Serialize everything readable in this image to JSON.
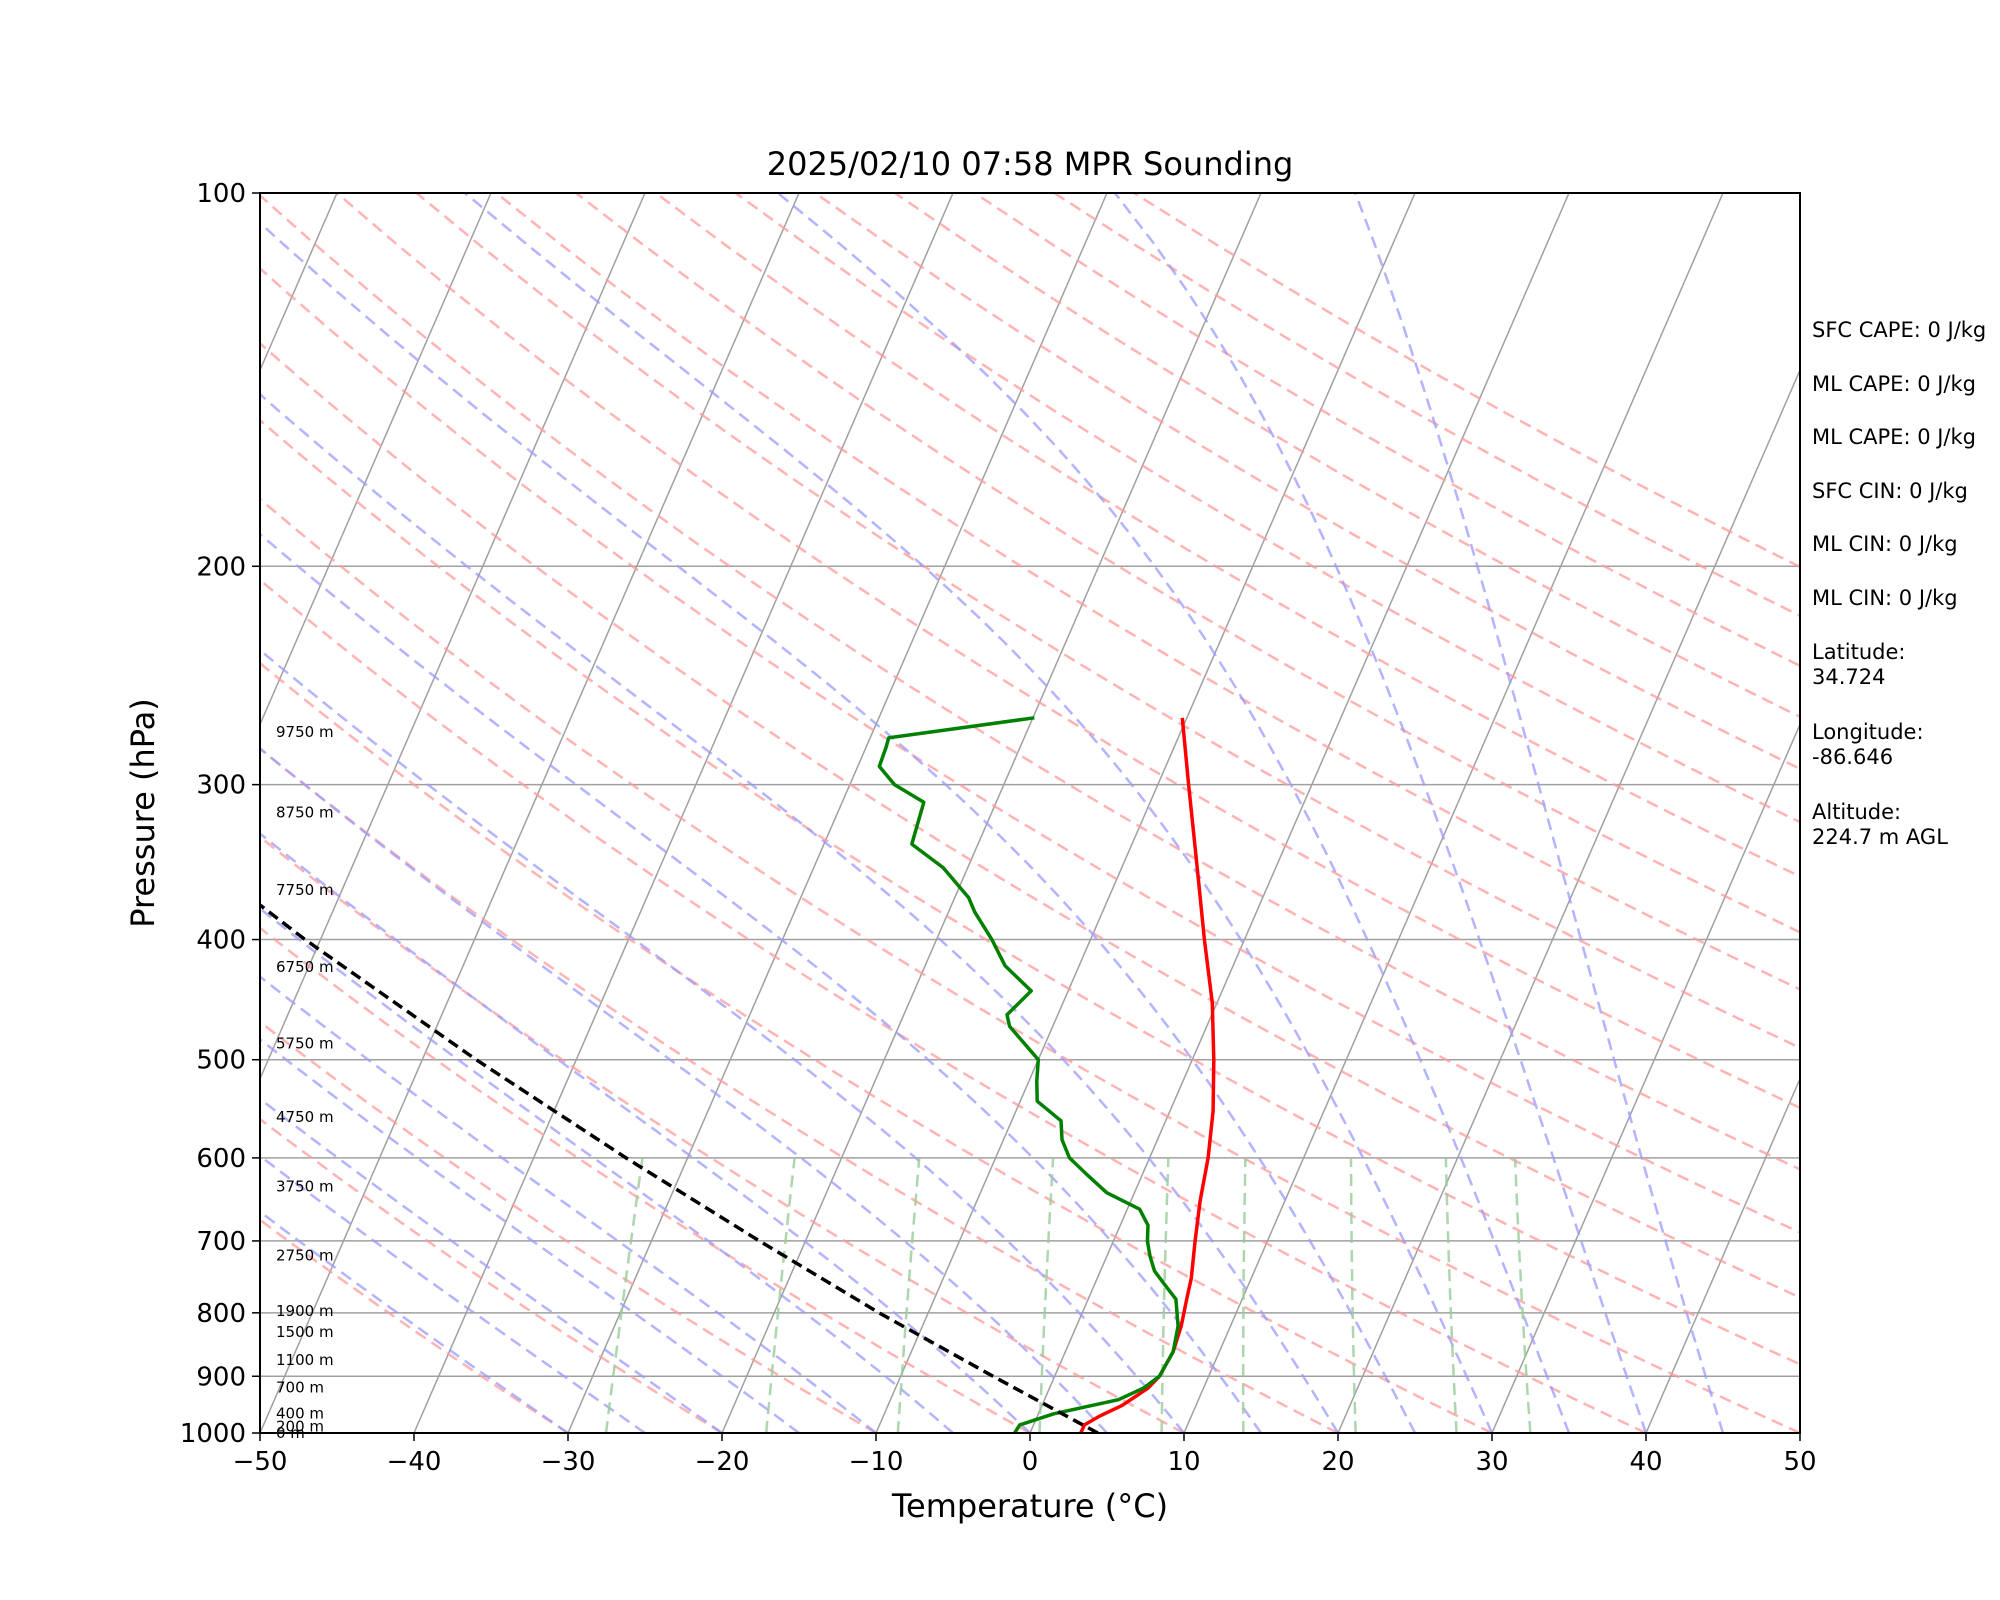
{
  "chart_data": {
    "type": "line",
    "title": "2025/02/10 07:58 MPR Sounding",
    "xlabel": "Temperature (°C)",
    "ylabel": "Pressure (hPa)",
    "xlim": [
      -50,
      50
    ],
    "ylim": [
      1000,
      100
    ],
    "y_scale": "log",
    "x_ticks": [
      "−50",
      "−40",
      "−30",
      "−20",
      "−10",
      "0",
      "10",
      "20",
      "30",
      "40",
      "50"
    ],
    "y_ticks": [
      1000,
      900,
      800,
      700,
      600,
      500,
      400,
      300,
      200,
      100
    ],
    "grid": true,
    "background_lines": [
      "isotherms",
      "dry adiabats",
      "moist adiabats",
      "mixing ratio lines"
    ],
    "series": [
      {
        "role": "temperature",
        "color": "#ff0000",
        "points": [
          {
            "p": 1000,
            "t": 3.3
          },
          {
            "p": 985,
            "t": 3.3
          },
          {
            "p": 970,
            "t": 4.0
          },
          {
            "p": 950,
            "t": 5.2
          },
          {
            "p": 920,
            "t": 6.4
          },
          {
            "p": 900,
            "t": 6.8
          },
          {
            "p": 860,
            "t": 7.0
          },
          {
            "p": 820,
            "t": 6.8
          },
          {
            "p": 780,
            "t": 6.4
          },
          {
            "p": 750,
            "t": 6.1
          },
          {
            "p": 700,
            "t": 5.3
          },
          {
            "p": 650,
            "t": 4.5
          },
          {
            "p": 600,
            "t": 3.8
          },
          {
            "p": 550,
            "t": 2.8
          },
          {
            "p": 500,
            "t": 1.4
          },
          {
            "p": 450,
            "t": -0.3
          },
          {
            "p": 400,
            "t": -2.6
          },
          {
            "p": 350,
            "t": -5.1
          },
          {
            "p": 300,
            "t": -8.0
          },
          {
            "p": 265,
            "t": -10.3
          }
        ]
      },
      {
        "role": "dewpoint",
        "color": "#008000",
        "points": [
          {
            "p": 1000,
            "t": -1.0
          },
          {
            "p": 985,
            "t": -0.9
          },
          {
            "p": 965,
            "t": 1.0
          },
          {
            "p": 940,
            "t": 4.8
          },
          {
            "p": 920,
            "t": 6.1
          },
          {
            "p": 900,
            "t": 6.8
          },
          {
            "p": 860,
            "t": 7.0
          },
          {
            "p": 820,
            "t": 6.6
          },
          {
            "p": 780,
            "t": 5.7
          },
          {
            "p": 760,
            "t": 4.6
          },
          {
            "p": 740,
            "t": 3.5
          },
          {
            "p": 720,
            "t": 2.8
          },
          {
            "p": 700,
            "t": 2.2
          },
          {
            "p": 680,
            "t": 1.8
          },
          {
            "p": 660,
            "t": 0.8
          },
          {
            "p": 640,
            "t": -1.8
          },
          {
            "p": 620,
            "t": -3.5
          },
          {
            "p": 600,
            "t": -5.2
          },
          {
            "p": 580,
            "t": -6.2
          },
          {
            "p": 560,
            "t": -6.8
          },
          {
            "p": 540,
            "t": -8.9
          },
          {
            "p": 520,
            "t": -9.5
          },
          {
            "p": 500,
            "t": -10.0
          },
          {
            "p": 470,
            "t": -12.8
          },
          {
            "p": 460,
            "t": -13.3
          },
          {
            "p": 440,
            "t": -12.4
          },
          {
            "p": 420,
            "t": -14.8
          },
          {
            "p": 400,
            "t": -16.4
          },
          {
            "p": 380,
            "t": -18.3
          },
          {
            "p": 370,
            "t": -19.1
          },
          {
            "p": 350,
            "t": -21.6
          },
          {
            "p": 335,
            "t": -24.3
          },
          {
            "p": 310,
            "t": -24.7
          },
          {
            "p": 300,
            "t": -27.1
          },
          {
            "p": 290,
            "t": -28.6
          },
          {
            "p": 280,
            "t": -28.7
          },
          {
            "p": 275,
            "t": -28.8
          },
          {
            "p": 265,
            "t": -19.9
          }
        ]
      },
      {
        "role": "parcel",
        "color": "#000000",
        "style": "dashed",
        "points": [
          {
            "p": 1000,
            "t": 4.4
          },
          {
            "p": 900,
            "t": -4.0
          },
          {
            "p": 800,
            "t": -13.2
          },
          {
            "p": 700,
            "t": -23.0
          },
          {
            "p": 600,
            "t": -34.0
          },
          {
            "p": 500,
            "t": -46.5
          },
          {
            "p": 400,
            "t": -61.0
          },
          {
            "p": 300,
            "t": -78.5
          },
          {
            "p": 265,
            "t": -85.9
          }
        ]
      }
    ],
    "height_labels": [
      {
        "p": 1000,
        "label": "0 m"
      },
      {
        "p": 988,
        "label": "200 m"
      },
      {
        "p": 964,
        "label": "400 m"
      },
      {
        "p": 919,
        "label": "700 m"
      },
      {
        "p": 873,
        "label": "1100 m"
      },
      {
        "p": 829,
        "label": "1500 m"
      },
      {
        "p": 797,
        "label": "1900 m"
      },
      {
        "p": 719,
        "label": "2750 m"
      },
      {
        "p": 633,
        "label": "3750 m"
      },
      {
        "p": 556,
        "label": "4750 m"
      },
      {
        "p": 485,
        "label": "5750 m"
      },
      {
        "p": 421,
        "label": "6750 m"
      },
      {
        "p": 365,
        "label": "7750 m"
      },
      {
        "p": 316,
        "label": "8750 m"
      },
      {
        "p": 272,
        "label": "9750 m"
      }
    ]
  },
  "stats": {
    "sfc_cape": "SFC CAPE: 0 J/kg",
    "ml_cape_1": "ML CAPE: 0 J/kg",
    "ml_cape_2": "ML CAPE: 0 J/kg",
    "sfc_cin": "SFC CIN: 0 J/kg",
    "ml_cin_1": "ML CIN: 0 J/kg",
    "ml_cin_2": "ML CIN: 0 J/kg",
    "latitude": "Latitude:\n34.724",
    "longitude": "Longitude:\n-86.646",
    "altitude": "Altitude:\n224.7 m AGL"
  },
  "colors": {
    "isotherm": "#a0a0a0",
    "dry_adiabat": "#ff9999",
    "moist_adiabat": "#9999ff",
    "mixing_ratio": "#99cc99"
  }
}
